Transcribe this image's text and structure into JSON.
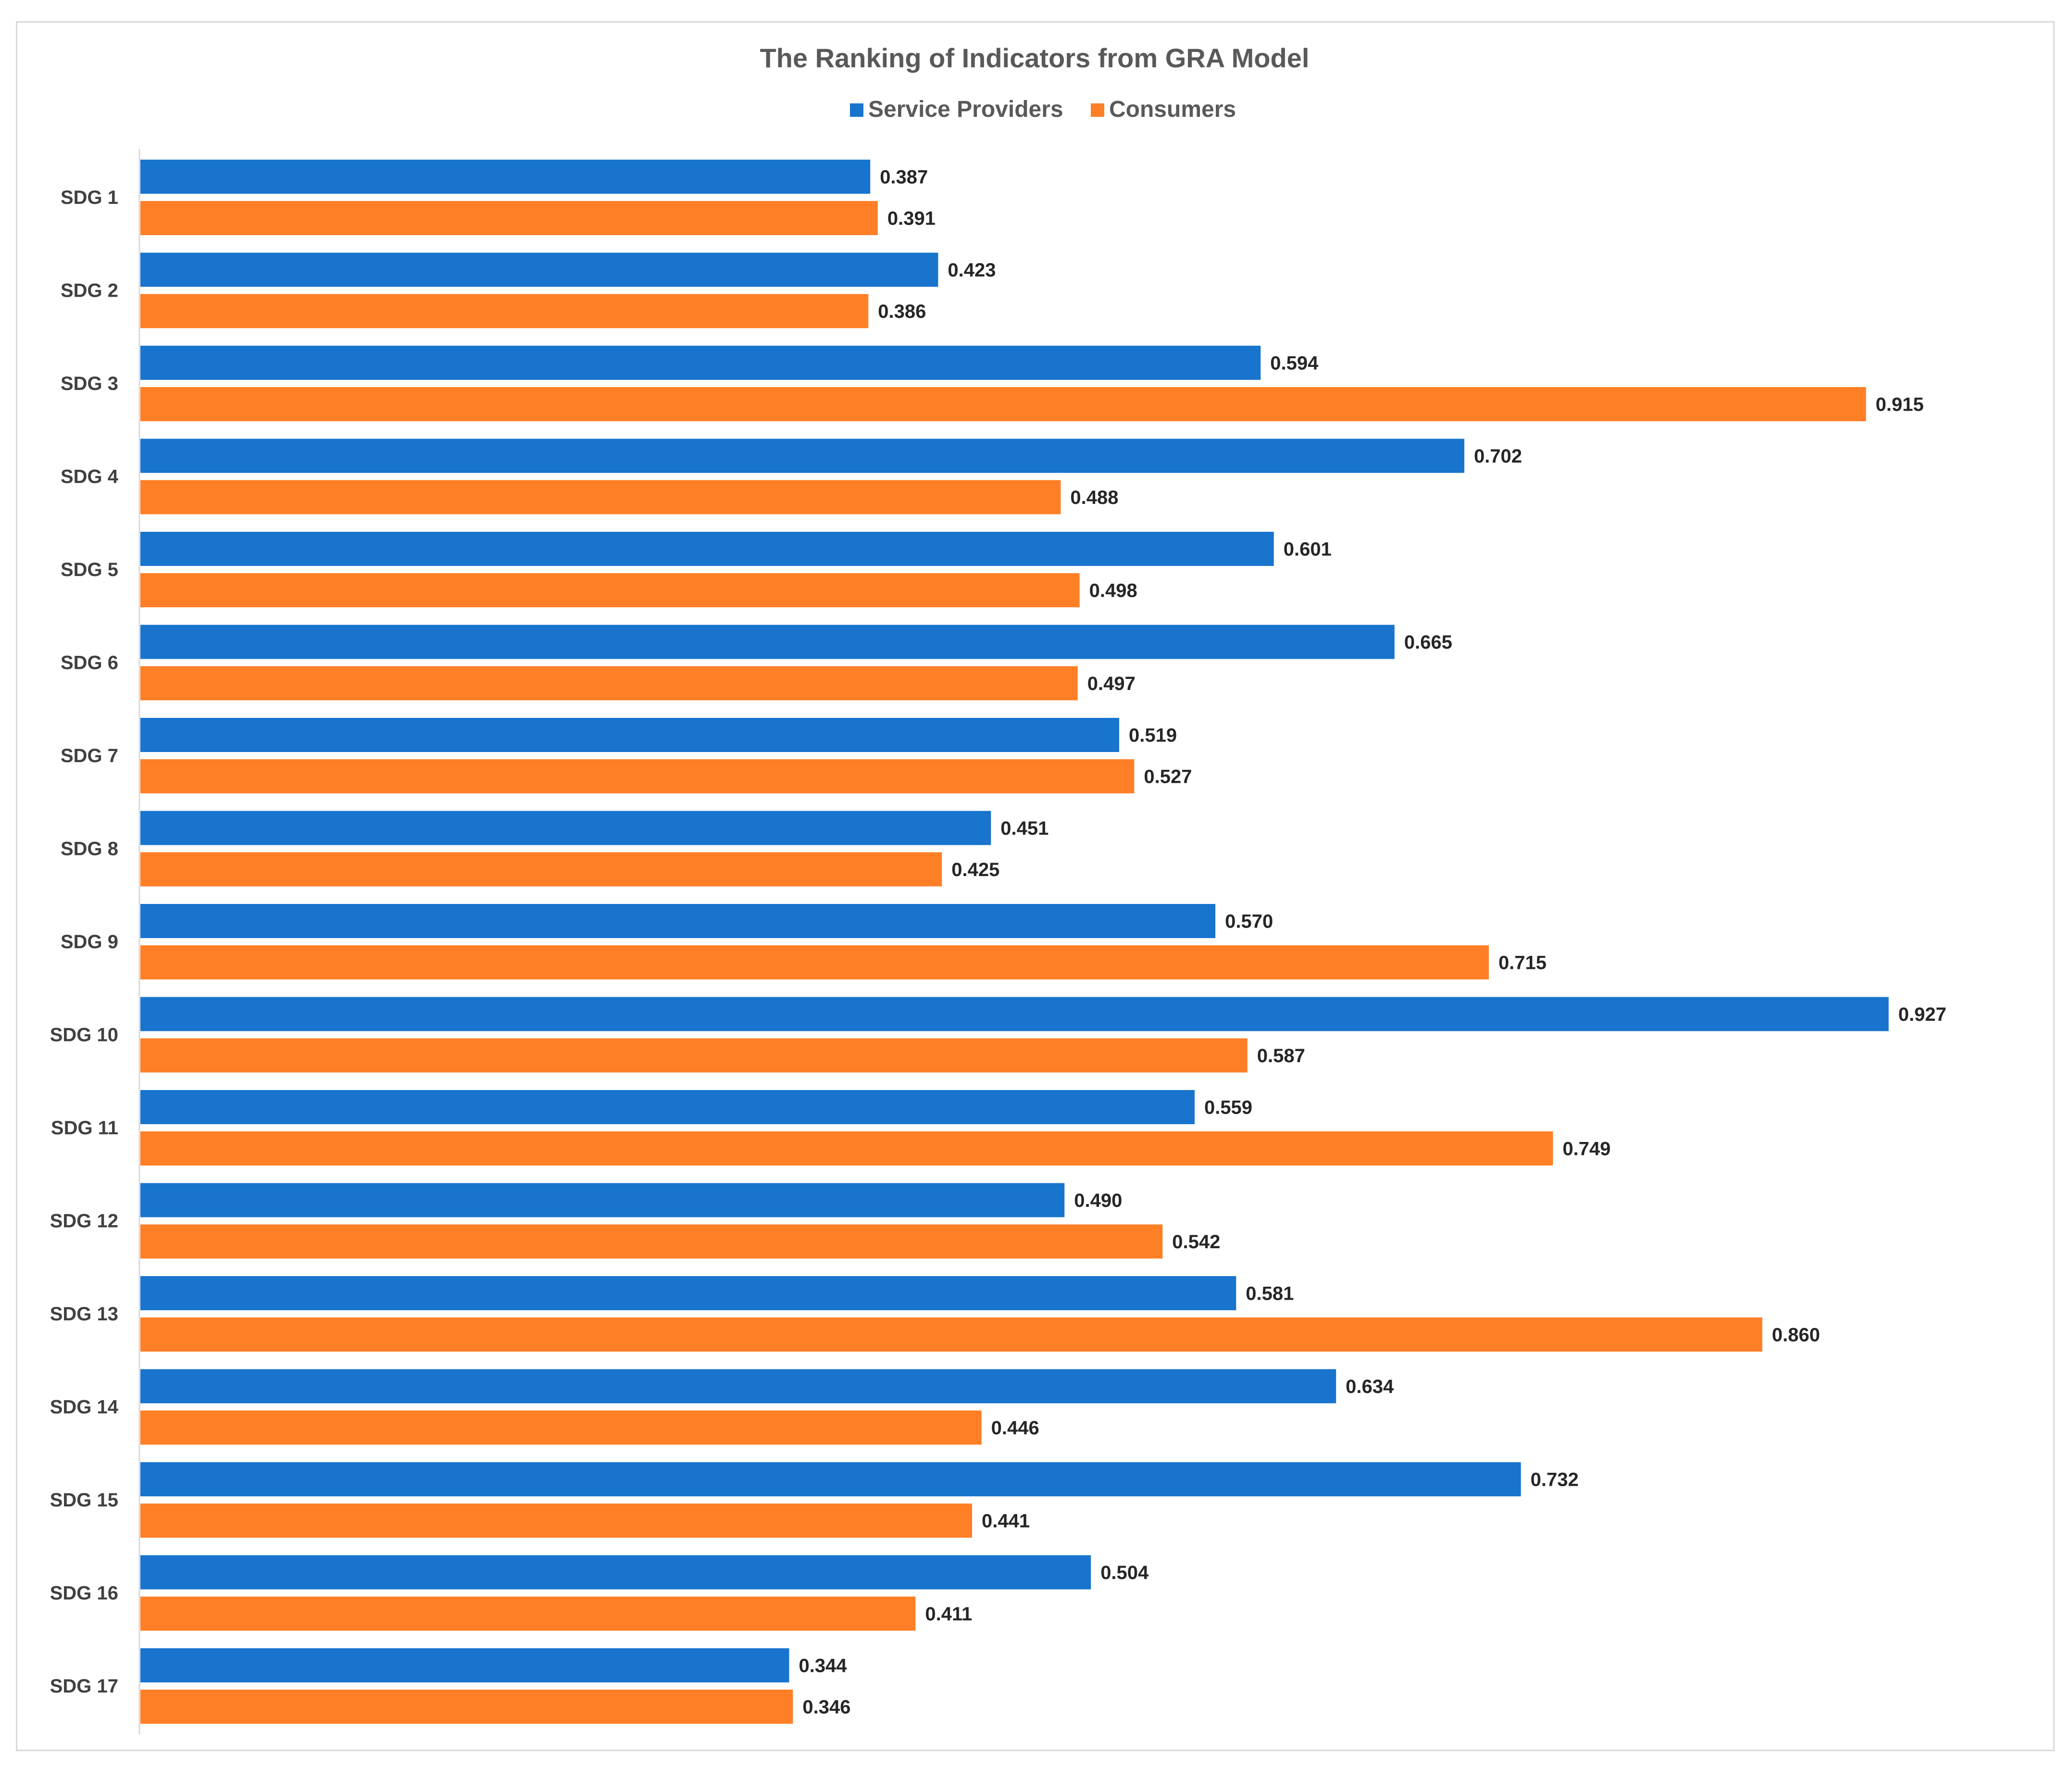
{
  "chart_data": {
    "type": "bar",
    "orientation": "horizontal",
    "title": "The Ranking of Indicators from GRA Model",
    "xlabel": "",
    "ylabel": "",
    "xlim": [
      0,
      0.95
    ],
    "grid": false,
    "legend_position": "top",
    "categories": [
      "SDG 1",
      "SDG 2",
      "SDG 3",
      "SDG 4",
      "SDG 5",
      "SDG 6",
      "SDG 7",
      "SDG 8",
      "SDG 9",
      "SDG 10",
      "SDG 11",
      "SDG 12",
      "SDG 13",
      "SDG 14",
      "SDG 15",
      "SDG 16",
      "SDG 17"
    ],
    "series": [
      {
        "name": "Service Providers",
        "color": "#1874CD",
        "values": [
          0.387,
          0.423,
          0.594,
          0.702,
          0.601,
          0.665,
          0.519,
          0.451,
          0.57,
          0.927,
          0.559,
          0.49,
          0.581,
          0.634,
          0.732,
          0.504,
          0.344
        ],
        "labels": [
          "0.387",
          "0.423",
          "0.594",
          "0.702",
          "0.601",
          "0.665",
          "0.519",
          "0.451",
          "0.570",
          "0.927",
          "0.559",
          "0.490",
          "0.581",
          "0.634",
          "0.732",
          "0.504",
          "0.344"
        ]
      },
      {
        "name": "Consumers",
        "color": "#FF7F27",
        "values": [
          0.391,
          0.386,
          0.915,
          0.488,
          0.498,
          0.497,
          0.527,
          0.425,
          0.715,
          0.587,
          0.749,
          0.542,
          0.86,
          0.446,
          0.441,
          0.411,
          0.346
        ],
        "labels": [
          "0.391",
          "0.386",
          "0.915",
          "0.488",
          "0.498",
          "0.497",
          "0.527",
          "0.425",
          "0.715",
          "0.587",
          "0.749",
          "0.542",
          "0.860",
          "0.446",
          "0.441",
          "0.411",
          "0.346"
        ]
      }
    ]
  }
}
